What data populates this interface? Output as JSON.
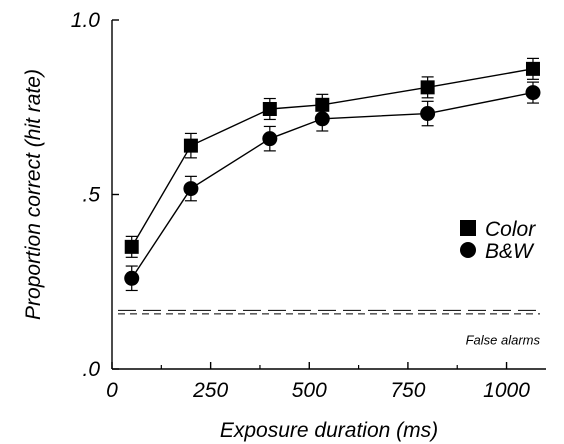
{
  "chart_data": {
    "type": "line",
    "xlabel": "Exposure duration (ms)",
    "ylabel": "Proportion correct (hit rate)",
    "xlim": [
      0,
      1100
    ],
    "ylim": [
      0,
      1.0
    ],
    "x_ticks": [
      {
        "value": 0,
        "label": "0"
      },
      {
        "value": 250,
        "label": "250"
      },
      {
        "value": 500,
        "label": "500"
      },
      {
        "value": 750,
        "label": "750"
      },
      {
        "value": 1000,
        "label": "1000"
      }
    ],
    "y_ticks": [
      {
        "value": 0,
        "label": ".0"
      },
      {
        "value": 0.5,
        "label": ".5"
      },
      {
        "value": 1.0,
        "label": "1.0"
      }
    ],
    "legend_position": "right",
    "series": [
      {
        "name": "Color",
        "marker": "square",
        "x": [
          50,
          200,
          400,
          533,
          800,
          1067
        ],
        "y": [
          0.35,
          0.64,
          0.745,
          0.757,
          0.807,
          0.86
        ],
        "err": [
          0.03,
          0.035,
          0.03,
          0.03,
          0.03,
          0.03
        ]
      },
      {
        "name": "B&W",
        "marker": "circle",
        "x": [
          50,
          200,
          400,
          533,
          800,
          1067
        ],
        "y": [
          0.26,
          0.517,
          0.66,
          0.717,
          0.732,
          0.792
        ],
        "err": [
          0.035,
          0.035,
          0.035,
          0.035,
          0.035,
          0.03
        ]
      }
    ],
    "reference_lines": [
      {
        "label": "False alarms",
        "y": 0.168,
        "style": "long-dash"
      },
      {
        "label": "",
        "y": 0.158,
        "style": "short-dash"
      }
    ]
  }
}
